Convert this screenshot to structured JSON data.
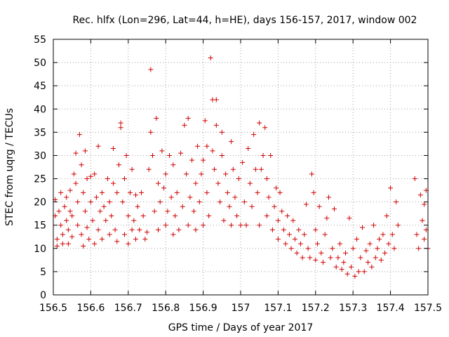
{
  "chart_data": {
    "type": "scatter",
    "title": "Rec. hlfx (Lon=296, Lat=44, h=HE), days 156-157, 2017, window 002",
    "xlabel": "GPS time / Days of year 2017",
    "ylabel": "STEC from uqrg / TECUs",
    "xlim": [
      156.5,
      157.5
    ],
    "ylim": [
      0,
      55
    ],
    "xticks": [
      "156.5",
      "156.6",
      "156.7",
      "156.8",
      "156.9",
      "157",
      "157.1",
      "157.2",
      "157.3",
      "157.4",
      "157.5"
    ],
    "yticks": [
      "0",
      "5",
      "10",
      "15",
      "20",
      "25",
      "30",
      "35",
      "40",
      "45",
      "50",
      "55"
    ],
    "grid": true,
    "marker": "plus",
    "color": "#d00000",
    "points": [
      [
        156.505,
        17
      ],
      [
        156.505,
        20.5
      ],
      [
        156.51,
        12
      ],
      [
        156.51,
        10.5
      ],
      [
        156.515,
        18
      ],
      [
        156.52,
        15
      ],
      [
        156.52,
        22
      ],
      [
        156.525,
        13
      ],
      [
        156.525,
        11
      ],
      [
        156.53,
        19
      ],
      [
        156.535,
        16
      ],
      [
        156.535,
        21
      ],
      [
        156.54,
        14
      ],
      [
        156.54,
        11
      ],
      [
        156.545,
        18
      ],
      [
        156.545,
        22.5
      ],
      [
        156.55,
        17
      ],
      [
        156.55,
        12.5
      ],
      [
        156.555,
        26
      ],
      [
        156.56,
        24
      ],
      [
        156.56,
        30.5
      ],
      [
        156.565,
        20
      ],
      [
        156.565,
        15
      ],
      [
        156.57,
        34.5
      ],
      [
        156.575,
        28
      ],
      [
        156.575,
        13
      ],
      [
        156.58,
        22
      ],
      [
        156.58,
        10.5
      ],
      [
        156.585,
        31
      ],
      [
        156.585,
        18
      ],
      [
        156.59,
        25
      ],
      [
        156.59,
        14.5
      ],
      [
        156.595,
        12
      ],
      [
        156.6,
        25.5
      ],
      [
        156.6,
        20
      ],
      [
        156.605,
        16
      ],
      [
        156.61,
        26
      ],
      [
        156.61,
        11
      ],
      [
        156.615,
        21
      ],
      [
        156.62,
        32
      ],
      [
        156.62,
        14
      ],
      [
        156.625,
        18
      ],
      [
        156.63,
        22
      ],
      [
        156.63,
        12
      ],
      [
        156.635,
        19
      ],
      [
        156.64,
        16
      ],
      [
        156.645,
        25
      ],
      [
        156.65,
        13
      ],
      [
        156.65,
        20
      ],
      [
        156.655,
        17
      ],
      [
        156.66,
        31.5
      ],
      [
        156.66,
        24
      ],
      [
        156.665,
        14
      ],
      [
        156.67,
        22
      ],
      [
        156.67,
        11.5
      ],
      [
        156.675,
        28
      ],
      [
        156.68,
        37
      ],
      [
        156.68,
        36
      ],
      [
        156.685,
        20
      ],
      [
        156.69,
        25
      ],
      [
        156.69,
        13
      ],
      [
        156.695,
        30
      ],
      [
        156.7,
        17
      ],
      [
        156.7,
        11
      ],
      [
        156.705,
        22
      ],
      [
        156.71,
        27
      ],
      [
        156.71,
        14
      ],
      [
        156.715,
        16
      ],
      [
        156.72,
        21.5
      ],
      [
        156.72,
        12
      ],
      [
        156.725,
        19
      ],
      [
        156.73,
        14
      ],
      [
        156.735,
        22
      ],
      [
        156.74,
        17
      ],
      [
        156.745,
        12
      ],
      [
        156.75,
        13.5
      ],
      [
        156.755,
        27
      ],
      [
        156.76,
        48.5
      ],
      [
        156.76,
        35
      ],
      [
        156.765,
        30
      ],
      [
        156.77,
        18
      ],
      [
        156.775,
        38
      ],
      [
        156.78,
        24
      ],
      [
        156.78,
        14
      ],
      [
        156.785,
        20
      ],
      [
        156.79,
        31
      ],
      [
        156.795,
        23
      ],
      [
        156.8,
        15
      ],
      [
        156.8,
        26
      ],
      [
        156.805,
        18
      ],
      [
        156.81,
        30
      ],
      [
        156.815,
        21
      ],
      [
        156.82,
        13
      ],
      [
        156.82,
        28
      ],
      [
        156.825,
        17
      ],
      [
        156.83,
        22
      ],
      [
        156.835,
        14
      ],
      [
        156.84,
        30.5
      ],
      [
        156.845,
        19
      ],
      [
        156.85,
        36.5
      ],
      [
        156.855,
        26
      ],
      [
        156.86,
        38
      ],
      [
        156.86,
        15
      ],
      [
        156.865,
        21
      ],
      [
        156.87,
        29
      ],
      [
        156.875,
        18
      ],
      [
        156.88,
        14
      ],
      [
        156.88,
        24
      ],
      [
        156.885,
        32
      ],
      [
        156.89,
        20
      ],
      [
        156.895,
        26
      ],
      [
        156.9,
        15
      ],
      [
        156.9,
        29
      ],
      [
        156.905,
        37.5
      ],
      [
        156.91,
        32
      ],
      [
        156.91,
        22
      ],
      [
        156.915,
        17
      ],
      [
        156.92,
        51
      ],
      [
        156.925,
        42
      ],
      [
        156.925,
        31
      ],
      [
        156.93,
        27
      ],
      [
        156.935,
        36.5
      ],
      [
        156.935,
        42
      ],
      [
        156.94,
        24
      ],
      [
        156.945,
        20
      ],
      [
        156.95,
        35
      ],
      [
        156.95,
        30
      ],
      [
        156.955,
        16
      ],
      [
        156.96,
        26
      ],
      [
        156.965,
        22
      ],
      [
        156.97,
        19
      ],
      [
        156.975,
        33
      ],
      [
        156.975,
        15
      ],
      [
        156.98,
        27
      ],
      [
        156.985,
        21
      ],
      [
        156.99,
        17
      ],
      [
        156.995,
        25
      ],
      [
        157.0,
        15
      ],
      [
        157.005,
        28.5
      ],
      [
        157.01,
        20
      ],
      [
        157.015,
        15
      ],
      [
        157.02,
        31.5
      ],
      [
        157.025,
        24
      ],
      [
        157.03,
        19
      ],
      [
        157.035,
        34.5
      ],
      [
        157.04,
        27
      ],
      [
        157.045,
        22
      ],
      [
        157.05,
        37
      ],
      [
        157.05,
        15
      ],
      [
        157.055,
        27
      ],
      [
        157.06,
        30
      ],
      [
        157.065,
        36
      ],
      [
        157.07,
        17
      ],
      [
        157.07,
        25
      ],
      [
        157.075,
        21
      ],
      [
        157.08,
        30
      ],
      [
        157.085,
        14
      ],
      [
        157.09,
        19
      ],
      [
        157.095,
        23
      ],
      [
        157.1,
        16
      ],
      [
        157.1,
        12
      ],
      [
        157.105,
        22
      ],
      [
        157.11,
        18
      ],
      [
        157.115,
        14
      ],
      [
        157.12,
        11
      ],
      [
        157.125,
        17
      ],
      [
        157.13,
        13
      ],
      [
        157.135,
        10
      ],
      [
        157.14,
        16
      ],
      [
        157.145,
        12
      ],
      [
        157.15,
        9
      ],
      [
        157.155,
        14
      ],
      [
        157.16,
        11
      ],
      [
        157.165,
        8
      ],
      [
        157.17,
        13
      ],
      [
        157.175,
        19.5
      ],
      [
        157.18,
        10
      ],
      [
        157.185,
        8
      ],
      [
        157.19,
        26
      ],
      [
        157.195,
        22
      ],
      [
        157.2,
        14
      ],
      [
        157.2,
        7.5
      ],
      [
        157.205,
        11
      ],
      [
        157.21,
        19
      ],
      [
        157.215,
        9
      ],
      [
        157.22,
        7
      ],
      [
        157.225,
        13
      ],
      [
        157.23,
        16.5
      ],
      [
        157.235,
        21
      ],
      [
        157.24,
        8
      ],
      [
        157.245,
        10
      ],
      [
        157.25,
        18.5
      ],
      [
        157.255,
        6
      ],
      [
        157.26,
        8
      ],
      [
        157.265,
        11
      ],
      [
        157.27,
        5.5
      ],
      [
        157.275,
        7
      ],
      [
        157.28,
        9
      ],
      [
        157.285,
        4.5
      ],
      [
        157.29,
        16.5
      ],
      [
        157.295,
        6
      ],
      [
        157.3,
        10
      ],
      [
        157.305,
        4
      ],
      [
        157.31,
        12
      ],
      [
        157.315,
        5
      ],
      [
        157.32,
        8
      ],
      [
        157.325,
        14.5
      ],
      [
        157.33,
        5
      ],
      [
        157.335,
        9.5
      ],
      [
        157.34,
        7
      ],
      [
        157.345,
        11
      ],
      [
        157.35,
        6
      ],
      [
        157.355,
        15
      ],
      [
        157.36,
        8
      ],
      [
        157.365,
        10
      ],
      [
        157.37,
        12
      ],
      [
        157.375,
        7.5
      ],
      [
        157.38,
        13
      ],
      [
        157.385,
        9
      ],
      [
        157.39,
        17
      ],
      [
        157.395,
        11
      ],
      [
        157.4,
        23
      ],
      [
        157.405,
        13
      ],
      [
        157.41,
        10
      ],
      [
        157.415,
        20
      ],
      [
        157.42,
        15
      ],
      [
        157.465,
        25
      ],
      [
        157.47,
        13
      ],
      [
        157.475,
        10
      ],
      [
        157.48,
        21.5
      ],
      [
        157.485,
        16
      ],
      [
        157.49,
        12
      ],
      [
        157.49,
        19.5
      ],
      [
        157.495,
        22.5
      ],
      [
        157.495,
        14
      ],
      [
        157.5,
        10
      ]
    ]
  }
}
